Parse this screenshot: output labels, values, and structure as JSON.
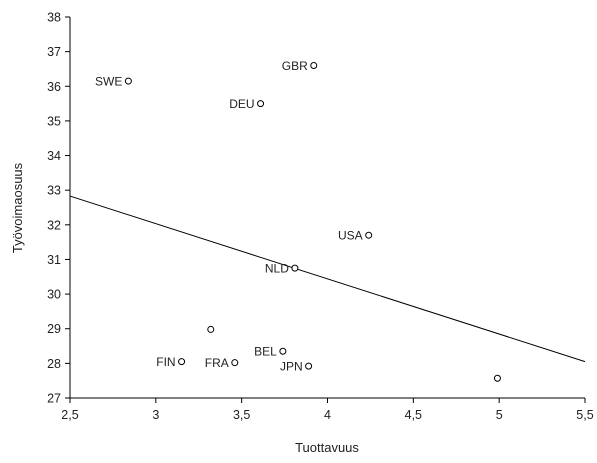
{
  "chart_data": {
    "type": "scatter",
    "xlabel": "Tuottavuus",
    "ylabel": "Työvoimaosuus",
    "xlim": [
      2.5,
      5.5
    ],
    "ylim": [
      27,
      38
    ],
    "xticks": [
      2.5,
      3,
      3.5,
      4,
      4.5,
      5,
      5.5
    ],
    "xtick_labels": [
      "2,5",
      "3",
      "3,5",
      "4",
      "4,5",
      "5",
      "5,5"
    ],
    "yticks": [
      27,
      28,
      29,
      30,
      31,
      32,
      33,
      34,
      35,
      36,
      37,
      38
    ],
    "ytick_labels": [
      "27",
      "28",
      "29",
      "30",
      "31",
      "32",
      "33",
      "34",
      "35",
      "36",
      "37",
      "38"
    ],
    "grid": false,
    "points": [
      {
        "label": "SWE",
        "x": 2.84,
        "y": 36.15
      },
      {
        "label": "GBR",
        "x": 3.92,
        "y": 36.6
      },
      {
        "label": "DEU",
        "x": 3.61,
        "y": 35.5
      },
      {
        "label": "USA",
        "x": 4.24,
        "y": 31.7
      },
      {
        "label": "NLD",
        "x": 3.81,
        "y": 30.75
      },
      {
        "label": "",
        "x": 3.32,
        "y": 28.98
      },
      {
        "label": "BEL",
        "x": 3.74,
        "y": 28.35
      },
      {
        "label": "FIN",
        "x": 3.15,
        "y": 28.05
      },
      {
        "label": "FRA",
        "x": 3.46,
        "y": 28.02
      },
      {
        "label": "JPN",
        "x": 3.89,
        "y": 27.92
      },
      {
        "label": "",
        "x": 4.99,
        "y": 27.57
      }
    ],
    "trendline": {
      "x": [
        2.5,
        5.5
      ],
      "y": [
        32.83,
        28.05
      ]
    }
  }
}
